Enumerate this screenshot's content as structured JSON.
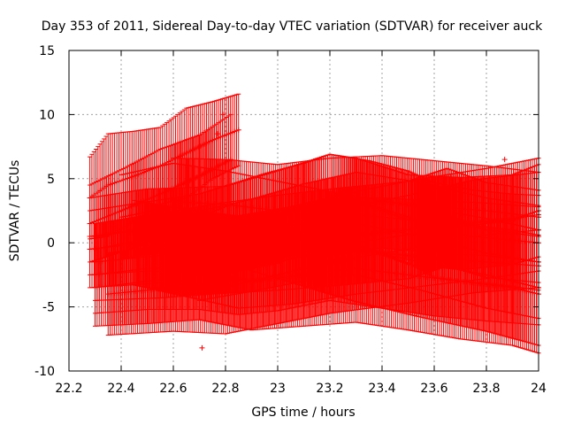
{
  "chart_data": {
    "type": "scatter",
    "title": "Day 353 of 2011, Sidereal Day-to-day VTEC variation (SDTVAR) for receiver auck",
    "xlabel": "GPS time / hours",
    "ylabel": "SDTVAR / TECUs",
    "xlim": [
      22.2,
      24
    ],
    "ylim": [
      -10,
      15
    ],
    "x_ticks": [
      22.2,
      22.4,
      22.6,
      22.8,
      23,
      23.2,
      23.4,
      23.6,
      23.8,
      24
    ],
    "x_tick_labels": [
      "22.2",
      "22.4",
      "22.6",
      "22.8",
      "23",
      "23.2",
      "23.4",
      "23.6",
      "23.8",
      "24"
    ],
    "y_ticks": [
      -10,
      -5,
      0,
      5,
      10,
      15
    ],
    "y_tick_labels": [
      "-10",
      "-5",
      "0",
      "5",
      "10",
      "15"
    ],
    "grid": true,
    "marker": "+",
    "error_bars": true,
    "color": "#ff0000",
    "series": [
      {
        "name": "s1",
        "x": [
          22.28,
          22.35,
          22.45,
          22.55,
          22.65,
          22.75,
          22.85
        ],
        "y": [
          3.5,
          4.5,
          5.2,
          6.0,
          7.0,
          8.0,
          8.8
        ],
        "err": [
          3.2,
          4.0,
          3.5,
          3.0,
          3.5,
          3.0,
          2.8
        ]
      },
      {
        "name": "s2",
        "x": [
          22.28,
          22.4,
          22.55,
          22.7,
          22.82
        ],
        "y": [
          1.5,
          2.5,
          3.8,
          5.2,
          6.5
        ],
        "err": [
          3.0,
          3.2,
          3.5,
          3.2,
          3.5
        ]
      },
      {
        "name": "s3",
        "x": [
          22.28,
          22.5,
          22.8,
          23.0,
          23.2,
          23.3,
          23.5,
          23.7,
          23.9,
          24.0
        ],
        "y": [
          0.5,
          1.0,
          1.0,
          2.0,
          3.5,
          3.2,
          1.8,
          1.5,
          1.8,
          2.5
        ],
        "err": [
          3.0,
          3.2,
          3.4,
          3.6,
          3.4,
          3.4,
          3.5,
          3.6,
          3.5,
          3.6
        ]
      },
      {
        "name": "s4",
        "x": [
          22.28,
          22.5,
          22.7,
          22.95,
          23.1,
          23.2,
          23.35,
          23.5,
          23.6,
          23.75,
          23.9,
          24.0
        ],
        "y": [
          -0.5,
          0.0,
          0.5,
          1.8,
          2.8,
          3.5,
          3.0,
          2.0,
          1.0,
          0.5,
          0.2,
          0.0
        ],
        "err": [
          3.0,
          3.2,
          3.3,
          3.6,
          3.4,
          3.4,
          3.4,
          3.6,
          3.7,
          3.6,
          3.6,
          3.7
        ]
      },
      {
        "name": "s5",
        "x": [
          22.3,
          22.55,
          22.75,
          23.0,
          23.25,
          23.5,
          23.65,
          23.8,
          24.0
        ],
        "y": [
          -1.5,
          -1.0,
          -0.5,
          0.0,
          0.5,
          1.0,
          2.0,
          1.0,
          0.5
        ],
        "err": [
          3.0,
          3.3,
          3.5,
          3.7,
          3.8,
          3.8,
          3.8,
          3.7,
          3.6
        ]
      },
      {
        "name": "s6",
        "x": [
          22.3,
          22.5,
          22.7,
          22.85,
          23.0,
          23.2,
          23.4,
          23.6,
          23.8,
          24.0
        ],
        "y": [
          -2.5,
          -2.0,
          -1.8,
          -2.0,
          -1.5,
          -0.5,
          -0.8,
          -1.2,
          -1.5,
          -1.8
        ],
        "err": [
          3.0,
          3.2,
          3.4,
          3.6,
          3.8,
          4.0,
          4.3,
          4.5,
          4.6,
          4.6
        ]
      },
      {
        "name": "s7",
        "x": [
          22.3,
          22.5,
          22.7,
          22.9,
          23.1,
          23.3,
          23.5,
          23.7,
          23.9,
          24.0
        ],
        "y": [
          -3.5,
          -3.0,
          -2.5,
          -3.0,
          -2.5,
          -2.0,
          -2.5,
          -3.0,
          -3.5,
          -4.0
        ],
        "err": [
          3.0,
          3.3,
          3.5,
          3.8,
          4.0,
          4.2,
          4.3,
          4.5,
          4.5,
          4.6
        ]
      },
      {
        "name": "s8",
        "x": [
          22.35,
          22.6,
          22.8,
          23.0,
          23.2,
          23.5,
          23.75,
          24.0
        ],
        "y": [
          -4.0,
          -3.5,
          -3.5,
          -2.5,
          -1.5,
          -0.5,
          0.5,
          1.0
        ],
        "err": [
          3.2,
          3.4,
          3.6,
          3.8,
          4.0,
          4.2,
          4.4,
          4.5
        ]
      },
      {
        "name": "s9",
        "x": [
          22.4,
          22.6,
          22.8,
          23.0,
          23.3,
          23.55,
          23.8,
          24.0
        ],
        "y": [
          2.0,
          2.8,
          2.0,
          1.0,
          -0.5,
          -1.5,
          -2.5,
          -3.5
        ],
        "err": [
          3.3,
          3.4,
          3.6,
          3.8,
          4.1,
          4.3,
          4.4,
          4.5
        ]
      },
      {
        "name": "s10",
        "x": [
          22.45,
          22.65,
          22.85,
          23.05,
          23.3,
          23.55,
          23.8,
          24.0
        ],
        "y": [
          0.0,
          -0.8,
          -1.5,
          -1.0,
          0.0,
          0.8,
          1.5,
          2.2
        ],
        "err": [
          3.3,
          3.4,
          3.6,
          3.8,
          4.0,
          4.2,
          4.3,
          4.4
        ]
      },
      {
        "name": "s11",
        "x": [
          22.6,
          22.8,
          23.0,
          23.2,
          23.4,
          23.6,
          23.8,
          24.0
        ],
        "y": [
          3.2,
          3.0,
          2.5,
          2.8,
          3.2,
          2.8,
          2.5,
          2.0
        ],
        "err": [
          3.4,
          3.5,
          3.6,
          3.8,
          3.6,
          3.6,
          3.5,
          3.5
        ]
      },
      {
        "name": "s12",
        "x": [
          22.7,
          22.9,
          23.1,
          23.3,
          23.55,
          23.8,
          24.0
        ],
        "y": [
          -1.0,
          -0.2,
          0.8,
          1.5,
          0.5,
          -0.8,
          -1.5
        ],
        "err": [
          3.5,
          3.6,
          3.8,
          4.0,
          4.2,
          4.3,
          4.4
        ]
      }
    ],
    "outliers": [
      {
        "x": 22.71,
        "y": -8.2
      },
      {
        "x": 22.79,
        "y": 10.0
      },
      {
        "x": 22.77,
        "y": 8.5
      },
      {
        "x": 23.87,
        "y": 6.5
      }
    ]
  }
}
